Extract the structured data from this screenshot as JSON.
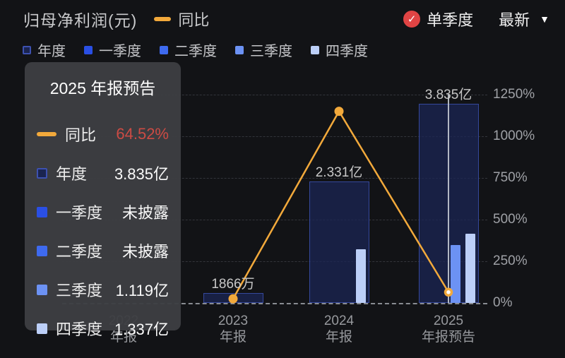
{
  "header": {
    "title": "归母净利润(元)",
    "line_legend": "同比",
    "quarter_toggle": "单季度",
    "latest_label": "最新"
  },
  "icons": {
    "check": "✓",
    "caret_down": "▼"
  },
  "colors": {
    "line": "#F2A93B",
    "check_circle": "#E04444",
    "yoy_value": "#CC4B44"
  },
  "legend": {
    "items": [
      {
        "label": "年度",
        "color": "#1A2450",
        "border": "#3D51B0"
      },
      {
        "label": "一季度",
        "color": "#2A4FE4"
      },
      {
        "label": "二季度",
        "color": "#3E6AEF"
      },
      {
        "label": "三季度",
        "color": "#6C92F4"
      },
      {
        "label": "四季度",
        "color": "#BCCFF8"
      }
    ]
  },
  "tooltip": {
    "title": "2025 年报预告",
    "rows": [
      {
        "label": "同比",
        "value": "64.52%",
        "value_color": "#CC4B44"
      },
      {
        "label": "年度",
        "value": "3.835亿"
      },
      {
        "label": "一季度",
        "value": "未披露"
      },
      {
        "label": "二季度",
        "value": "未披露"
      },
      {
        "label": "三季度",
        "value": "1.119亿"
      },
      {
        "label": "四季度",
        "value": "1.337亿"
      }
    ]
  },
  "chart_data": {
    "type": "bar+line",
    "categories": [
      "2022 年报",
      "2023 年报",
      "2024 年报",
      "2025 年报预告"
    ],
    "bar_unit": "亿元",
    "bar_series": [
      {
        "name": "年度",
        "values": [
          null,
          0.1866,
          2.331,
          3.835
        ],
        "labels": [
          null,
          "1866万",
          "2.331亿",
          "3.835亿"
        ]
      },
      {
        "name": "三季度",
        "values": [
          null,
          null,
          null,
          1.119
        ]
      },
      {
        "name": "四季度",
        "values": [
          null,
          null,
          1.03,
          1.337
        ]
      }
    ],
    "line_series": {
      "name": "同比",
      "unit": "%",
      "values": [
        null,
        25,
        1150,
        64.52
      ]
    },
    "right_axis": {
      "min": 0,
      "max": 1250,
      "step": 250,
      "tick_labels": [
        "0%",
        "250%",
        "500%",
        "750%",
        "1000%",
        "1250%"
      ]
    },
    "grid": "dashed-horizontal",
    "legend_position": "top-left",
    "highlight_index": 3
  }
}
